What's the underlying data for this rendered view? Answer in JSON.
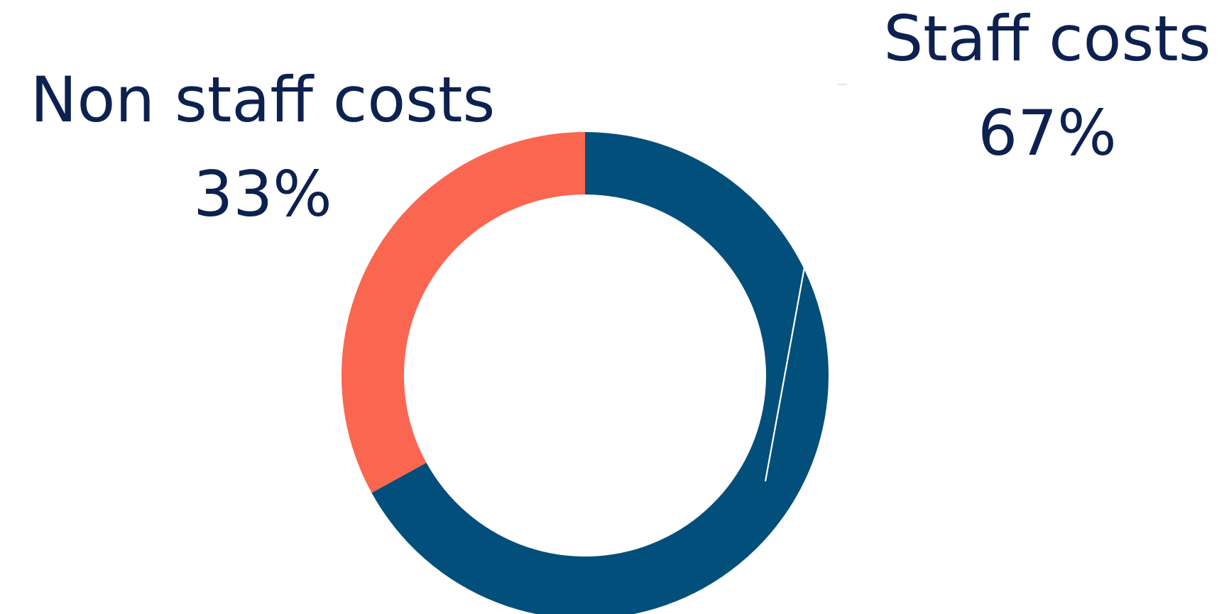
{
  "chart_data": {
    "type": "pie",
    "variant": "donut",
    "title": "",
    "slices": [
      {
        "name": "Staff costs",
        "percent_label": "67%",
        "value": 67,
        "color": "#024f7b"
      },
      {
        "name": "Non staff costs",
        "percent_label": "33%",
        "value": 33,
        "color": "#fb6651"
      }
    ],
    "start_angle_deg": 0,
    "direction": "clockwise",
    "legend": "none",
    "labels": "outside with leader line",
    "text_color": "#0d2150",
    "background": "#ffffff"
  }
}
